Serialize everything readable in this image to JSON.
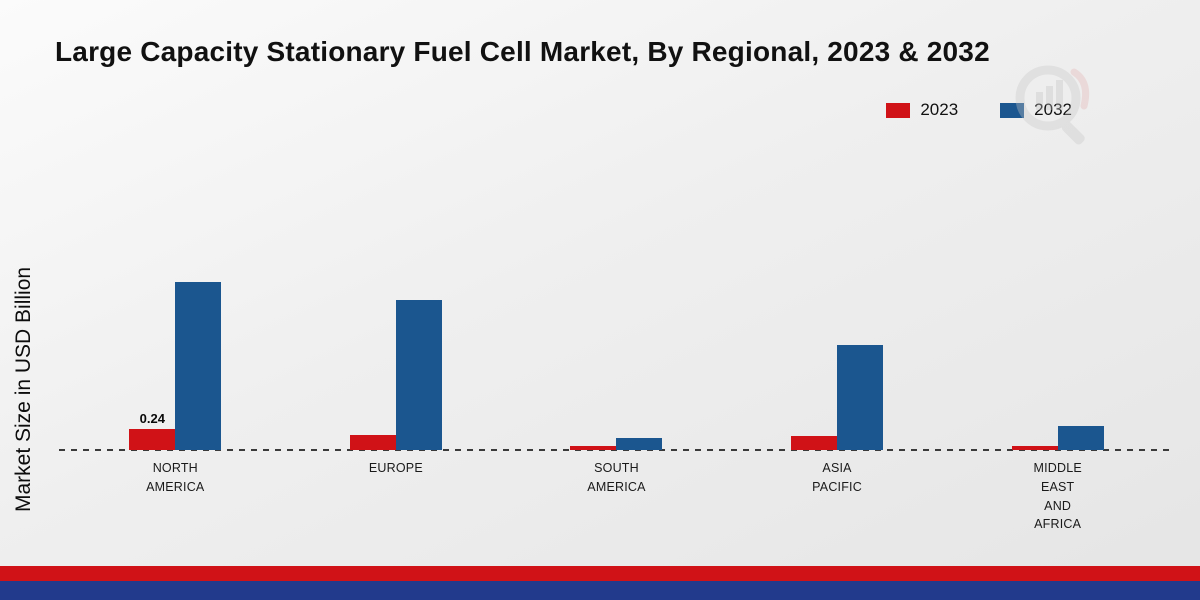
{
  "page": {
    "title": "Large Capacity Stationary Fuel Cell Market, By Regional, 2023 & 2032"
  },
  "chart_data": {
    "type": "bar",
    "title": "Large Capacity Stationary Fuel Cell Market, By Regional, 2023 & 2032",
    "xlabel": "",
    "ylabel": "Market Size in USD Billion",
    "categories": [
      [
        "NORTH",
        "AMERICA"
      ],
      [
        "EUROPE"
      ],
      [
        "SOUTH",
        "AMERICA"
      ],
      [
        "ASIA",
        "PACIFIC"
      ],
      [
        "MIDDLE",
        "EAST",
        "AND",
        "AFRICA"
      ]
    ],
    "series": [
      {
        "name": "2023",
        "color": "#d01217",
        "values": [
          0.24,
          0.17,
          0.05,
          0.16,
          0.05
        ],
        "labels": [
          "0.24",
          "",
          "",
          "",
          ""
        ]
      },
      {
        "name": "2032",
        "color": "#1b568f",
        "values": [
          1.95,
          1.74,
          0.14,
          1.22,
          0.28
        ],
        "labels": [
          "",
          "",
          "",
          "",
          ""
        ]
      }
    ],
    "ylim": [
      0,
      2.2
    ],
    "grid": false,
    "legend_position": "top-right",
    "baseline_style": "dashed"
  },
  "footer": {
    "red": "#d01217",
    "blue": "#223a8c"
  },
  "watermark": {
    "name": "chart-logo-watermark"
  }
}
